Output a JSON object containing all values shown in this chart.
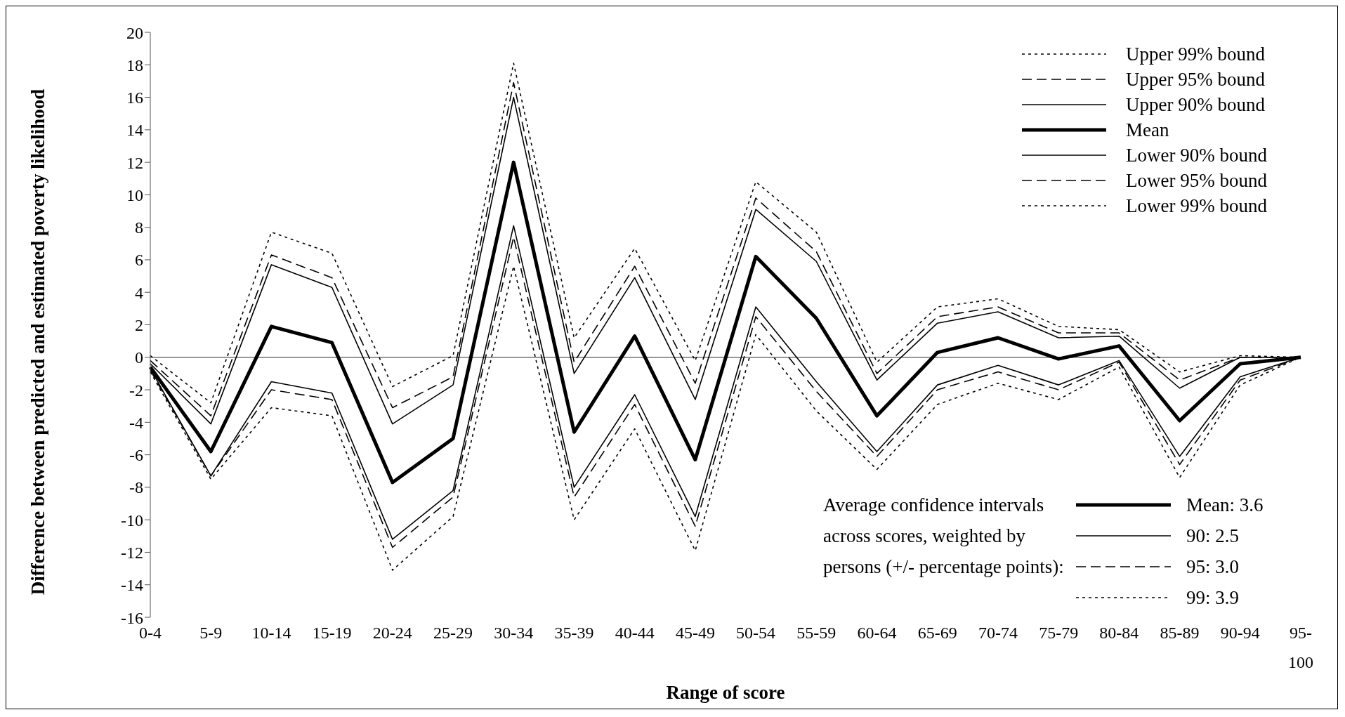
{
  "chart_data": {
    "type": "line",
    "xlabel": "Range of score",
    "ylabel": "Difference between predicted and estimated poverty likelihood",
    "categories": [
      "0-4",
      "5-9",
      "10-14",
      "15-19",
      "20-24",
      "25-29",
      "30-34",
      "35-39",
      "40-44",
      "45-49",
      "50-54",
      "55-59",
      "60-64",
      "65-69",
      "70-74",
      "75-79",
      "80-84",
      "85-89",
      "90-94",
      "95-100"
    ],
    "series": [
      {
        "name": "Upper 99% bound",
        "color": "#000000",
        "line_style": "dotted",
        "values": [
          0.1,
          -2.8,
          7.7,
          6.4,
          -1.8,
          0.1,
          18.1,
          1.2,
          6.7,
          -0.2,
          10.8,
          7.7,
          -0.3,
          3.1,
          3.6,
          1.9,
          1.7,
          -0.9,
          0.1,
          0.0
        ]
      },
      {
        "name": "Upper 95% bound",
        "color": "#000000",
        "line_style": "dashed",
        "values": [
          -0.2,
          -3.6,
          6.3,
          4.9,
          -3.1,
          -1.2,
          16.9,
          -0.3,
          5.6,
          -1.6,
          9.8,
          6.5,
          -1.0,
          2.5,
          3.1,
          1.5,
          1.5,
          -1.4,
          0.0,
          0.0
        ]
      },
      {
        "name": "Upper 90% bound",
        "color": "#000000",
        "line_style": "solid",
        "values": [
          -0.4,
          -4.1,
          5.7,
          4.3,
          -4.1,
          -1.7,
          16.0,
          -1.0,
          4.9,
          -2.6,
          9.1,
          5.9,
          -1.4,
          2.1,
          2.8,
          1.2,
          1.3,
          -1.9,
          0.0,
          0.0
        ]
      },
      {
        "name": "Mean",
        "color": "#000000",
        "line_style": "solid",
        "values": [
          -0.6,
          -5.8,
          1.9,
          0.9,
          -7.7,
          -5.0,
          12.0,
          -4.6,
          1.3,
          -6.3,
          6.2,
          2.4,
          -3.6,
          0.3,
          1.2,
          -0.1,
          0.7,
          -3.9,
          -0.4,
          0.0
        ]
      },
      {
        "name": "Lower 90% bound",
        "color": "#000000",
        "line_style": "solid",
        "values": [
          -0.7,
          -7.3,
          -1.5,
          -2.2,
          -11.2,
          -8.2,
          8.1,
          -8.0,
          -2.3,
          -9.8,
          3.1,
          -1.5,
          -5.8,
          -1.7,
          -0.5,
          -1.7,
          -0.2,
          -6.1,
          -1.2,
          0.0
        ]
      },
      {
        "name": "Lower 95% bound",
        "color": "#000000",
        "line_style": "dashed",
        "values": [
          -0.8,
          -7.3,
          -2.0,
          -2.6,
          -11.7,
          -8.6,
          7.4,
          -8.6,
          -2.9,
          -10.4,
          2.5,
          -2.1,
          -6.1,
          -2.0,
          -0.9,
          -2.0,
          -0.3,
          -6.6,
          -1.4,
          0.0
        ]
      },
      {
        "name": "Lower 99% bound",
        "color": "#000000",
        "line_style": "dotted",
        "values": [
          -0.9,
          -7.5,
          -3.1,
          -3.6,
          -13.1,
          -9.8,
          5.6,
          -10.0,
          -4.4,
          -11.9,
          1.4,
          -3.3,
          -6.9,
          -2.9,
          -1.6,
          -2.6,
          -0.6,
          -7.4,
          -1.7,
          0.0
        ]
      }
    ],
    "ylim": [
      -16,
      20
    ],
    "yticks": [
      -16,
      -14,
      -12,
      -10,
      -8,
      -6,
      -4,
      -2,
      0,
      2,
      4,
      6,
      8,
      10,
      12,
      14,
      16,
      18,
      20
    ],
    "ref_lines": [
      {
        "axis": "y",
        "value": 0,
        "color": "#555555"
      }
    ],
    "legend": "top right",
    "grid": false,
    "marker": "none",
    "annotations": [
      "Average confidence intervals across scores, weighted by persons (+/- percentage points):",
      "Mean: 3.6",
      "90: 2.5",
      "95: 3.0",
      "99: 3.9"
    ]
  }
}
